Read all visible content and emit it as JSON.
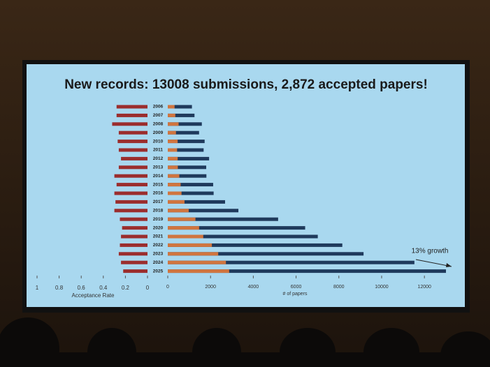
{
  "chart_data": {
    "type": "bar",
    "title": "New records: 13008 submissions, 2,872 accepted papers!",
    "categories": [
      "2006",
      "2007",
      "2008",
      "2009",
      "2010",
      "2011",
      "2012",
      "2013",
      "2014",
      "2015",
      "2016",
      "2017",
      "2018",
      "2019",
      "2020",
      "2021",
      "2022",
      "2023",
      "2024",
      "2025"
    ],
    "series": [
      {
        "color": "#1f3a5c",
        "values": [
          1131,
          1250,
          1593,
          1464,
          1724,
          1677,
          1933,
          1798,
          1807,
          2123,
          2145,
          2680,
          3303,
          5160,
          6424,
          7015,
          8161,
          9155,
          11532,
          13008
        ]
      },
      {
        "color": "#d0753f",
        "values": [
          318,
          353,
          508,
          384,
          462,
          436,
          463,
          471,
          540,
          602,
          643,
          783,
          979,
          1294,
          1466,
          1660,
          2063,
          2359,
          2719,
          2872
        ]
      }
    ],
    "xlim": [
      0,
      13400
    ],
    "xticks": [
      0,
      2000,
      4000,
      6000,
      8000,
      10000,
      12000
    ],
    "xlabel": "# of papers",
    "rate": {
      "color": "#9b2d2d",
      "values": [
        0.28,
        0.28,
        0.32,
        0.26,
        0.27,
        0.26,
        0.24,
        0.26,
        0.3,
        0.28,
        0.3,
        0.29,
        0.3,
        0.25,
        0.23,
        0.24,
        0.25,
        0.26,
        0.24,
        0.22
      ],
      "lim": [
        1,
        0
      ],
      "ticks": [
        1,
        0.8,
        0.6,
        0.4,
        0.2,
        0
      ],
      "label": "Acceptance Rate"
    },
    "annotation": "13% growth"
  }
}
